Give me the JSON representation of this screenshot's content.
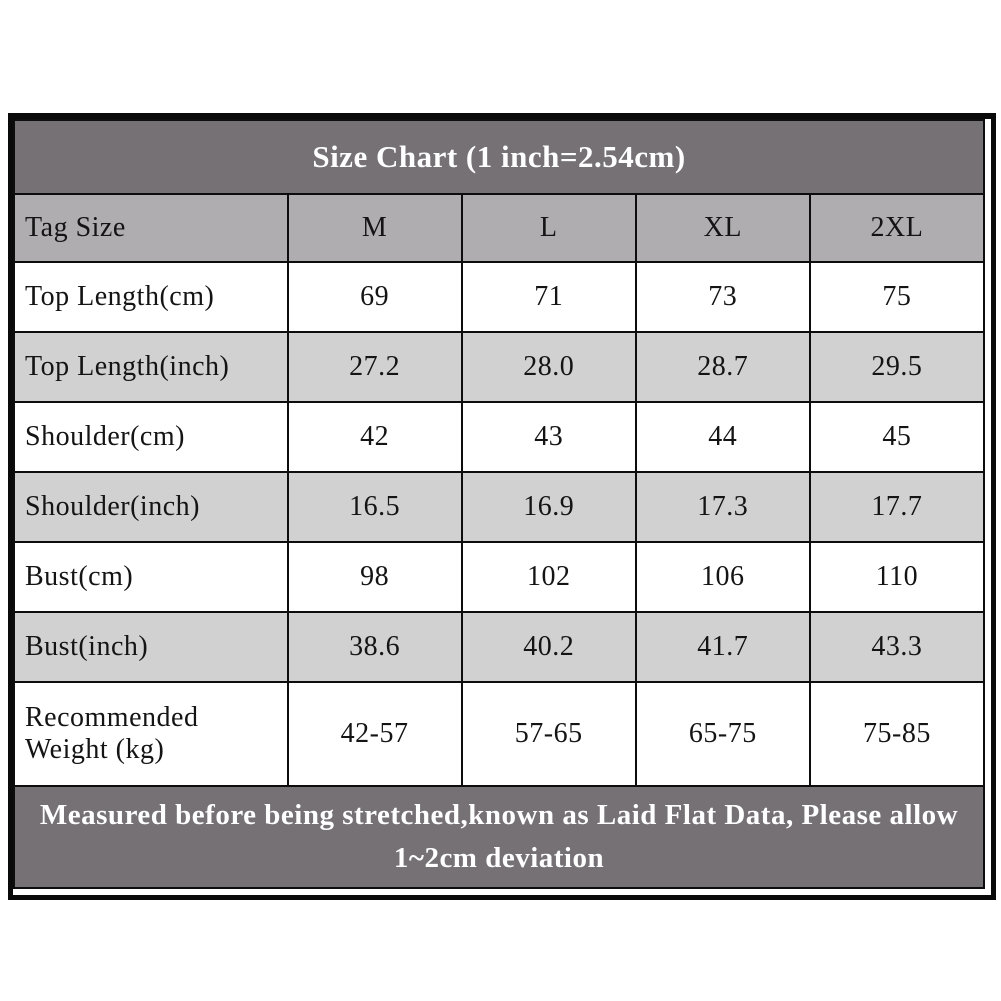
{
  "chart_data": {
    "type": "table",
    "title": "Size Chart (1 inch=2.54cm)",
    "header": [
      "Tag Size",
      "M",
      "L",
      "XL",
      "2XL"
    ],
    "rows": [
      {
        "label": "Top Length(cm)",
        "values": [
          "69",
          "71",
          "73",
          "75"
        ]
      },
      {
        "label": "Top Length(inch)",
        "values": [
          "27.2",
          "28.0",
          "28.7",
          "29.5"
        ]
      },
      {
        "label": "Shoulder(cm)",
        "values": [
          "42",
          "43",
          "44",
          "45"
        ]
      },
      {
        "label": "Shoulder(inch)",
        "values": [
          "16.5",
          "16.9",
          "17.3",
          "17.7"
        ]
      },
      {
        "label": "Bust(cm)",
        "values": [
          "98",
          "102",
          "106",
          "110"
        ]
      },
      {
        "label": "Bust(inch)",
        "values": [
          "38.6",
          "40.2",
          "41.7",
          "43.3"
        ]
      },
      {
        "label": "Recommended Weight (kg)",
        "values": [
          "42-57",
          "57-65",
          "65-75",
          "75-85"
        ]
      }
    ],
    "note": "Measured before being stretched,known as Laid Flat Data, Please allow 1~2cm deviation"
  },
  "colors": {
    "title_band_bg": "#757175",
    "header_row_bg": "#b0adb0",
    "alt_row_bg": "#d2d1d2",
    "row_bg": "#ffffff",
    "border": "#0d0d0d",
    "title_text": "#ffffff",
    "body_text": "#141414"
  }
}
